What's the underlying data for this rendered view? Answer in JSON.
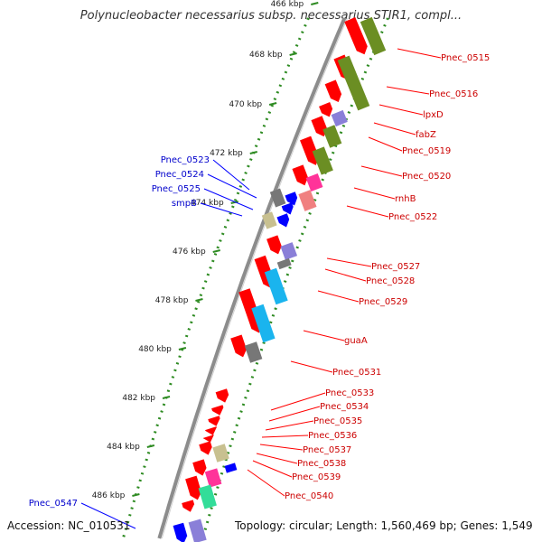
{
  "title": "Polynucleobacter necessarius subsp. necessarius STIR1, compl...",
  "accession": "Accession: NC_010531",
  "summary": "Topology: circular; Length: 1,560,469 bp; Genes: 1,549",
  "colors": {
    "background": "#ffffff",
    "backbone": "#8c8c8c",
    "dotted_track": "#2e8b22",
    "cds_forward": "#ff0000",
    "cds_reverse": "#0000ff",
    "forward_label": "#cc0000",
    "reverse_label": "#0000cc",
    "cog_olive": "#6b8e23",
    "cog_violet": "#8a7fd8",
    "cog_cyan": "#1ab4ee",
    "cog_gray": "#777777",
    "cog_magenta": "#ff3399",
    "cog_pink": "#f08080",
    "cog_khaki": "#c8c090",
    "cog_teal": "#33dd99"
  },
  "ticks": [
    "466 kbp",
    "468 kbp",
    "470 kbp",
    "472 kbp",
    "474 kbp",
    "476 kbp",
    "478 kbp",
    "480 kbp",
    "482 kbp",
    "484 kbp",
    "486 kbp"
  ],
  "forward_labels": [
    "Pnec_0515",
    "Pnec_0516",
    "lpxD",
    "fabZ",
    "Pnec_0519",
    "Pnec_0520",
    "rnhB",
    "Pnec_0522",
    "Pnec_0527",
    "Pnec_0528",
    "Pnec_0529",
    "guaA",
    "Pnec_0531",
    "Pnec_0533",
    "Pnec_0534",
    "Pnec_0535",
    "Pnec_0536",
    "Pnec_0537",
    "Pnec_0538",
    "Pnec_0539",
    "Pnec_0540"
  ],
  "reverse_labels": [
    "Pnec_0523",
    "Pnec_0524",
    "Pnec_0525",
    "smpB",
    "Pnec_0547"
  ]
}
